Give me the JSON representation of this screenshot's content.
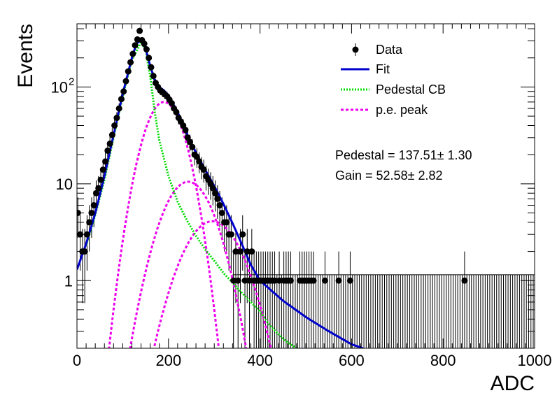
{
  "chart_data": {
    "type": "scatter",
    "xlabel": "ADC",
    "ylabel": "Events",
    "xlim": [
      0,
      1000
    ],
    "ylim": [
      0.2,
      450
    ],
    "yscale": "log",
    "grid": false,
    "legend_placement": "top-right",
    "x_ticks": [
      {
        "value": 0,
        "label": "0"
      },
      {
        "value": 200,
        "label": "200"
      },
      {
        "value": 400,
        "label": "400"
      },
      {
        "value": 600,
        "label": "600"
      },
      {
        "value": 800,
        "label": "800"
      },
      {
        "value": 1000,
        "label": "1000"
      }
    ],
    "y_ticks": [
      {
        "value": 1,
        "label": "1",
        "sup": ""
      },
      {
        "value": 10,
        "label": "10",
        "sup": ""
      },
      {
        "value": 100,
        "label": "10",
        "sup": "2"
      }
    ],
    "legend": [
      {
        "label": "Data",
        "style": "marker",
        "color": "#000000"
      },
      {
        "label": "Fit",
        "style": "solid",
        "color": "#0000cc"
      },
      {
        "label": "Pedestal CB",
        "style": "dotted",
        "color": "#00dd00"
      },
      {
        "label": "p.e. peak",
        "style": "dashed",
        "color": "#ee00ee"
      }
    ],
    "annotations": {
      "pedestal": "Pedestal = 137.51± 1.30",
      "gain": "Gain = 52.58± 2.82"
    },
    "data_points": [
      {
        "x": 2,
        "y": 5
      },
      {
        "x": 7,
        "y": 3
      },
      {
        "x": 12,
        "y": 2
      },
      {
        "x": 17,
        "y": 2
      },
      {
        "x": 22,
        "y": 3
      },
      {
        "x": 27,
        "y": 4
      },
      {
        "x": 32,
        "y": 5
      },
      {
        "x": 37,
        "y": 6
      },
      {
        "x": 42,
        "y": 8
      },
      {
        "x": 47,
        "y": 9
      },
      {
        "x": 52,
        "y": 11
      },
      {
        "x": 57,
        "y": 14
      },
      {
        "x": 62,
        "y": 17
      },
      {
        "x": 67,
        "y": 22
      },
      {
        "x": 72,
        "y": 26
      },
      {
        "x": 77,
        "y": 32
      },
      {
        "x": 82,
        "y": 40
      },
      {
        "x": 87,
        "y": 48
      },
      {
        "x": 92,
        "y": 60
      },
      {
        "x": 97,
        "y": 75
      },
      {
        "x": 102,
        "y": 90
      },
      {
        "x": 107,
        "y": 115
      },
      {
        "x": 112,
        "y": 145
      },
      {
        "x": 117,
        "y": 180
      },
      {
        "x": 122,
        "y": 220
      },
      {
        "x": 127,
        "y": 270
      },
      {
        "x": 132,
        "y": 310
      },
      {
        "x": 137,
        "y": 380
      },
      {
        "x": 142,
        "y": 305
      },
      {
        "x": 147,
        "y": 280
      },
      {
        "x": 152,
        "y": 245
      },
      {
        "x": 157,
        "y": 200
      },
      {
        "x": 162,
        "y": 160
      },
      {
        "x": 167,
        "y": 130
      },
      {
        "x": 172,
        "y": 110
      },
      {
        "x": 177,
        "y": 100
      },
      {
        "x": 182,
        "y": 92
      },
      {
        "x": 187,
        "y": 88
      },
      {
        "x": 192,
        "y": 84
      },
      {
        "x": 197,
        "y": 80
      },
      {
        "x": 202,
        "y": 74
      },
      {
        "x": 207,
        "y": 68
      },
      {
        "x": 212,
        "y": 60
      },
      {
        "x": 217,
        "y": 55
      },
      {
        "x": 222,
        "y": 48
      },
      {
        "x": 227,
        "y": 44
      },
      {
        "x": 232,
        "y": 40
      },
      {
        "x": 237,
        "y": 36
      },
      {
        "x": 242,
        "y": 30
      },
      {
        "x": 247,
        "y": 27
      },
      {
        "x": 252,
        "y": 24
      },
      {
        "x": 257,
        "y": 20
      },
      {
        "x": 262,
        "y": 19
      },
      {
        "x": 267,
        "y": 17
      },
      {
        "x": 272,
        "y": 15
      },
      {
        "x": 277,
        "y": 14
      },
      {
        "x": 282,
        "y": 12
      },
      {
        "x": 287,
        "y": 11
      },
      {
        "x": 292,
        "y": 10
      },
      {
        "x": 297,
        "y": 9
      },
      {
        "x": 302,
        "y": 8
      },
      {
        "x": 307,
        "y": 7
      },
      {
        "x": 312,
        "y": 6
      },
      {
        "x": 317,
        "y": 5
      },
      {
        "x": 322,
        "y": 4
      },
      {
        "x": 327,
        "y": 4
      },
      {
        "x": 332,
        "y": 3
      },
      {
        "x": 337,
        "y": 3
      },
      {
        "x": 342,
        "y": 1
      },
      {
        "x": 347,
        "y": 2
      },
      {
        "x": 352,
        "y": 1
      },
      {
        "x": 357,
        "y": 2
      },
      {
        "x": 362,
        "y": 3
      },
      {
        "x": 367,
        "y": 1
      },
      {
        "x": 372,
        "y": 2
      },
      {
        "x": 377,
        "y": 1
      },
      {
        "x": 382,
        "y": 2
      },
      {
        "x": 387,
        "y": 1
      },
      {
        "x": 392,
        "y": 1
      },
      {
        "x": 397,
        "y": 1
      },
      {
        "x": 402,
        "y": 1
      },
      {
        "x": 407,
        "y": 1
      },
      {
        "x": 412,
        "y": 1
      },
      {
        "x": 417,
        "y": 1
      },
      {
        "x": 422,
        "y": 1
      },
      {
        "x": 427,
        "y": 1
      },
      {
        "x": 432,
        "y": 1
      },
      {
        "x": 442,
        "y": 1
      },
      {
        "x": 452,
        "y": 1
      },
      {
        "x": 457,
        "y": 1
      },
      {
        "x": 462,
        "y": 1
      },
      {
        "x": 467,
        "y": 1
      },
      {
        "x": 487,
        "y": 1
      },
      {
        "x": 492,
        "y": 1
      },
      {
        "x": 497,
        "y": 1
      },
      {
        "x": 502,
        "y": 1
      },
      {
        "x": 507,
        "y": 1
      },
      {
        "x": 512,
        "y": 1
      },
      {
        "x": 517,
        "y": 1
      },
      {
        "x": 542,
        "y": 1
      },
      {
        "x": 572,
        "y": 1
      },
      {
        "x": 597,
        "y": 1
      },
      {
        "x": 847,
        "y": 1
      }
    ],
    "fit_curve": [
      {
        "x": 0,
        "y": 1.3
      },
      {
        "x": 20,
        "y": 2.4
      },
      {
        "x": 40,
        "y": 5.0
      },
      {
        "x": 60,
        "y": 12
      },
      {
        "x": 80,
        "y": 32
      },
      {
        "x": 100,
        "y": 85
      },
      {
        "x": 120,
        "y": 200
      },
      {
        "x": 130,
        "y": 280
      },
      {
        "x": 140,
        "y": 305
      },
      {
        "x": 150,
        "y": 250
      },
      {
        "x": 160,
        "y": 165
      },
      {
        "x": 170,
        "y": 118
      },
      {
        "x": 180,
        "y": 100
      },
      {
        "x": 190,
        "y": 92
      },
      {
        "x": 200,
        "y": 82
      },
      {
        "x": 220,
        "y": 55
      },
      {
        "x": 240,
        "y": 33
      },
      {
        "x": 260,
        "y": 21
      },
      {
        "x": 280,
        "y": 14
      },
      {
        "x": 300,
        "y": 9.5
      },
      {
        "x": 320,
        "y": 6.2
      },
      {
        "x": 340,
        "y": 3.9
      },
      {
        "x": 360,
        "y": 2.4
      },
      {
        "x": 380,
        "y": 1.45
      },
      {
        "x": 400,
        "y": 1.0
      },
      {
        "x": 450,
        "y": 0.62
      },
      {
        "x": 500,
        "y": 0.42
      },
      {
        "x": 550,
        "y": 0.3
      },
      {
        "x": 600,
        "y": 0.22
      },
      {
        "x": 625,
        "y": 0.2
      }
    ],
    "pedestal_curve": [
      {
        "x": 20,
        "y": 2.3
      },
      {
        "x": 40,
        "y": 4.8
      },
      {
        "x": 60,
        "y": 11
      },
      {
        "x": 80,
        "y": 30
      },
      {
        "x": 100,
        "y": 80
      },
      {
        "x": 120,
        "y": 190
      },
      {
        "x": 140,
        "y": 290
      },
      {
        "x": 150,
        "y": 240
      },
      {
        "x": 160,
        "y": 130
      },
      {
        "x": 170,
        "y": 55
      },
      {
        "x": 180,
        "y": 28
      },
      {
        "x": 200,
        "y": 12
      },
      {
        "x": 220,
        "y": 6.5
      },
      {
        "x": 240,
        "y": 4.2
      },
      {
        "x": 260,
        "y": 2.9
      },
      {
        "x": 280,
        "y": 2.1
      },
      {
        "x": 300,
        "y": 1.6
      },
      {
        "x": 320,
        "y": 1.2
      },
      {
        "x": 340,
        "y": 0.95
      },
      {
        "x": 360,
        "y": 0.75
      },
      {
        "x": 380,
        "y": 0.6
      },
      {
        "x": 400,
        "y": 0.48
      },
      {
        "x": 420,
        "y": 0.35
      },
      {
        "x": 440,
        "y": 0.28
      },
      {
        "x": 460,
        "y": 0.23
      },
      {
        "x": 480,
        "y": 0.2
      }
    ],
    "pe_peaks": [
      {
        "mean": 190,
        "sigma": 35,
        "amp": 70
      },
      {
        "mean": 243,
        "sigma": 45,
        "amp": 10.5
      },
      {
        "mean": 296,
        "sigma": 52,
        "amp": 4.1
      }
    ]
  }
}
